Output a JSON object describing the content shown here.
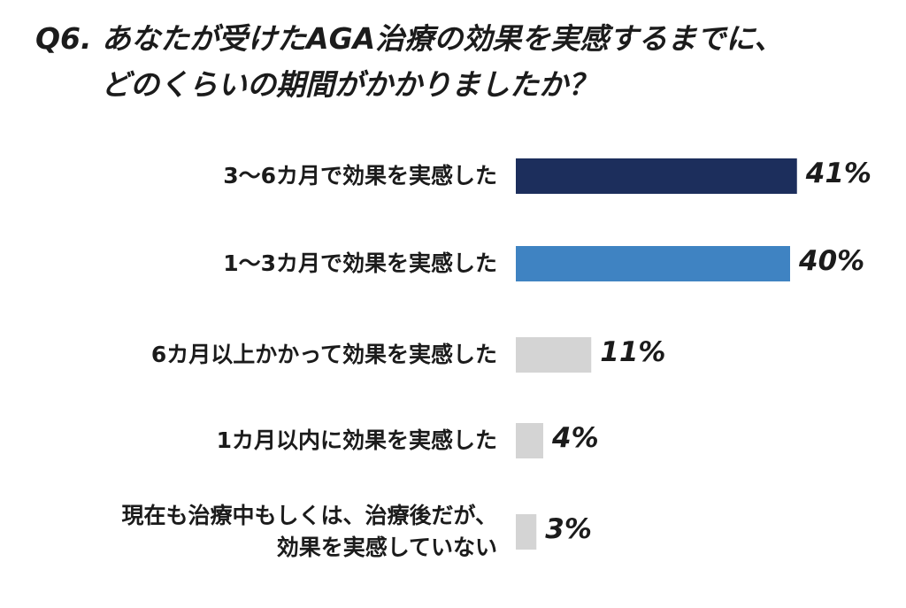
{
  "title_lines": [
    "Q6. あなたが受けたAGA治療の効果を実感するまでに、",
    "どのくらいの期間がかかりましたか？"
  ],
  "chart_data": {
    "type": "bar",
    "orientation": "horizontal",
    "categories": [
      [
        "3〜6カ月で効果を実感した"
      ],
      [
        "1〜3カ月で効果を実感した"
      ],
      [
        "6カ月以上かかって効果を実感した"
      ],
      [
        "1カ月以内に効果を実感した"
      ],
      [
        "現在も治療中もしくは、治療後だが、",
        "効果を実感していない"
      ]
    ],
    "values": [
      41,
      40,
      11,
      4,
      3
    ],
    "value_labels": [
      "41%",
      "40%",
      "11%",
      "4%",
      "3%"
    ],
    "colors": [
      "#1c2e5c",
      "#3f83c2",
      "#d4d4d4",
      "#d4d4d4",
      "#d4d4d4"
    ],
    "grid": false,
    "legend": "none"
  }
}
